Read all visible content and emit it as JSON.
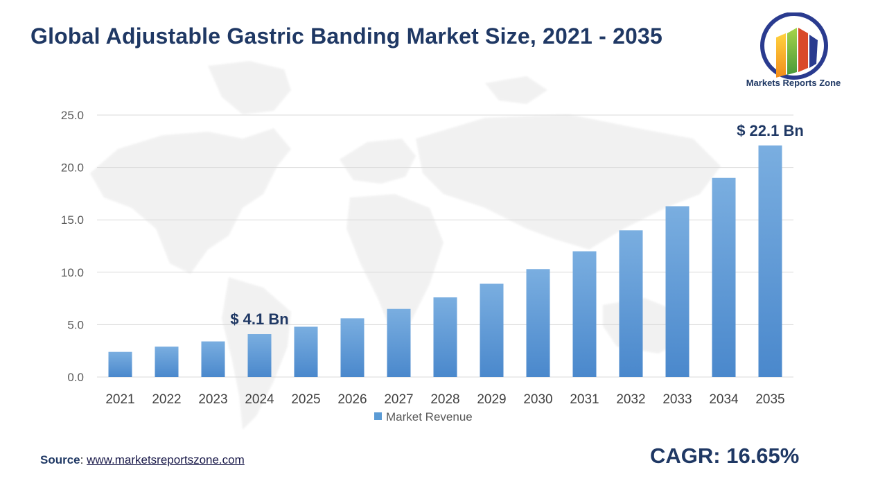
{
  "title": "Global Adjustable Gastric Banding Market Size, 2021 - 2035",
  "logo": {
    "text": "Markets Reports Zone"
  },
  "source": {
    "label": "Source",
    "separator": ": ",
    "url_text": "www.marketsreportszone.com"
  },
  "cagr": "CAGR: 16.65%",
  "colors": {
    "bar_top": "#7aaee0",
    "bar_bottom": "#4a88cc",
    "title": "#1f3864",
    "grid": "#d9d9d9"
  },
  "chart_data": {
    "type": "bar",
    "categories": [
      "2021",
      "2022",
      "2023",
      "2024",
      "2025",
      "2026",
      "2027",
      "2028",
      "2029",
      "2030",
      "2031",
      "2032",
      "2033",
      "2034",
      "2035"
    ],
    "series": [
      {
        "name": "Market Revenue",
        "values": [
          2.4,
          2.9,
          3.4,
          4.1,
          4.8,
          5.6,
          6.5,
          7.6,
          8.9,
          10.3,
          12.0,
          14.0,
          16.3,
          19.0,
          22.1
        ]
      }
    ],
    "y_ticks": [
      "0.0",
      "5.0",
      "10.0",
      "15.0",
      "20.0",
      "25.0"
    ],
    "ylim": [
      0,
      25
    ],
    "grid": true,
    "legend": "bottom",
    "annotations": [
      {
        "category": "2024",
        "text": "$ 4.1 Bn"
      },
      {
        "category": "2035",
        "text": "$ 22.1 Bn"
      }
    ]
  }
}
